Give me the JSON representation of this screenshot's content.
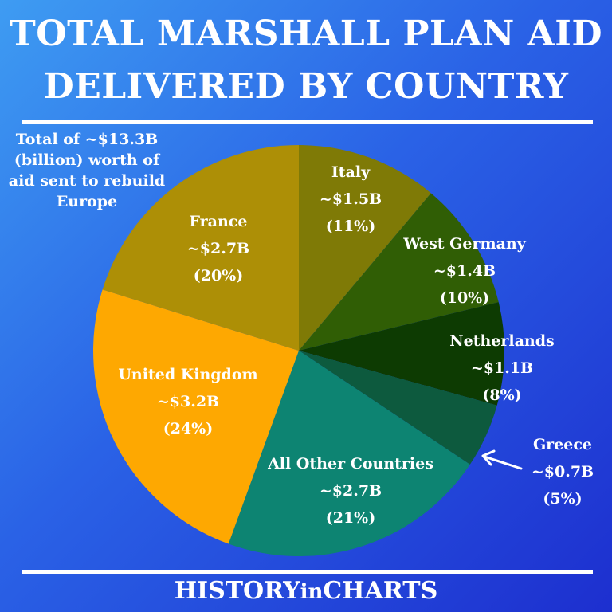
{
  "header": {
    "title_line1": "TOTAL MARSHALL PLAN AID",
    "title_line2": "DELIVERED BY COUNTRY"
  },
  "note": {
    "line1": "Total of ~$13.3B",
    "line2": "(billion) worth of",
    "line3": "aid sent to rebuild",
    "line4": "Europe"
  },
  "footer": {
    "brand_part1": "HISTORY",
    "brand_part2": "in",
    "brand_part3": "CHARTS"
  },
  "chart_data": {
    "type": "pie",
    "title": "TOTAL MARSHALL PLAN AID DELIVERED BY COUNTRY",
    "unit": "billion USD",
    "slices": [
      {
        "label": "Italy",
        "value_text": "~$1.5B",
        "percent_text": "(11%)",
        "value": 1.5,
        "percent": 11,
        "color": "#7f7a06"
      },
      {
        "label": "West Germany",
        "value_text": "~$1.4B",
        "percent_text": "(10%)",
        "value": 1.4,
        "percent": 10,
        "color": "#305e05"
      },
      {
        "label": "Netherlands",
        "value_text": "~$1.1B",
        "percent_text": "(8%)",
        "value": 1.1,
        "percent": 8,
        "color": "#0d3b02"
      },
      {
        "label": "Greece",
        "value_text": "~$0.7B",
        "percent_text": "(5%)",
        "value": 0.7,
        "percent": 5,
        "color": "#0d5a3e"
      },
      {
        "label": "All Other Countries",
        "value_text": "~$2.7B",
        "percent_text": "(21%)",
        "value": 2.7,
        "percent": 21,
        "color": "#0d8472"
      },
      {
        "label": "United Kingdom",
        "value_text": "~$3.2B",
        "percent_text": "(24%)",
        "value": 3.2,
        "percent": 24,
        "color": "#fea801"
      },
      {
        "label": "France",
        "value_text": "~$2.7B",
        "percent_text": "(20%)",
        "value": 2.7,
        "percent": 20,
        "color": "#ad8f06"
      }
    ],
    "callout": {
      "slice": "Greece",
      "arrow_color": "#ffffff"
    }
  }
}
